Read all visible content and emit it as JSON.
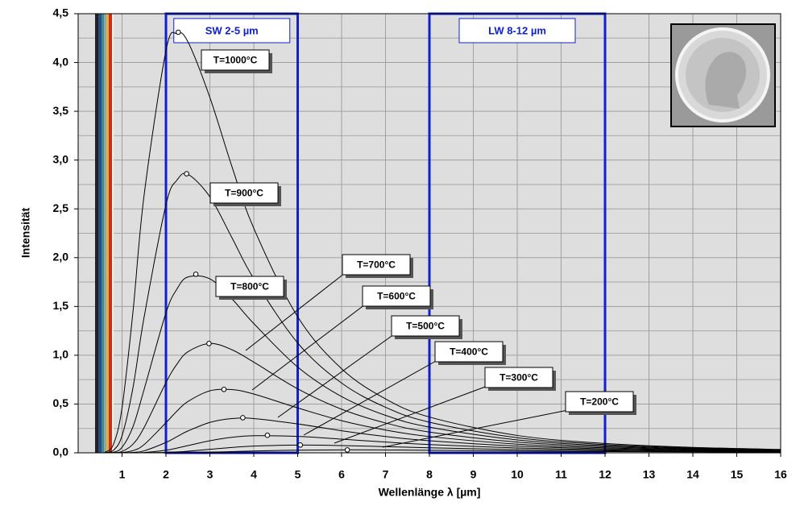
{
  "chart_data": {
    "type": "line",
    "x_label": "Wellenlänge λ [µm]",
    "y_label": "Intensität",
    "x": [
      0.6,
      0.8,
      1,
      1.25,
      1.5,
      2,
      2.25,
      2.5,
      3,
      3.5,
      4,
      5,
      6,
      7,
      8,
      10,
      12,
      14,
      16
    ],
    "xlim": [
      0,
      16
    ],
    "xticks": [
      1,
      2,
      3,
      4,
      5,
      6,
      7,
      8,
      9,
      10,
      11,
      12,
      13,
      14,
      15,
      16
    ],
    "ylim": [
      0,
      4.5
    ],
    "yticks": [
      {
        "value": 0,
        "label": "0,0"
      },
      {
        "value": 0.5,
        "label": "0,5"
      },
      {
        "value": 1,
        "label": "1,0"
      },
      {
        "value": 1.5,
        "label": "1,5"
      },
      {
        "value": 2,
        "label": "2,0"
      },
      {
        "value": 2.5,
        "label": "2,5"
      },
      {
        "value": 3,
        "label": "3,0"
      },
      {
        "value": 3.5,
        "label": "3,5"
      },
      {
        "value": 4,
        "label": "4,0"
      },
      {
        "value": 4.5,
        "label": "4,5"
      }
    ],
    "yminorticks": [
      0.25,
      0.75,
      1.25,
      1.75,
      2.25,
      2.75,
      3.25,
      3.75,
      4.25
    ],
    "grid": true,
    "bands": [
      {
        "label": "SW 2-5 µm",
        "range": [
          2,
          5
        ],
        "color": "#1020d0"
      },
      {
        "label": "LW 8-12 µm",
        "range": [
          8,
          12
        ],
        "color": "#1020d0"
      }
    ],
    "series": [
      {
        "name": "T=1000°C",
        "color": "#000000",
        "peak_x": 2.28,
        "peak_y": 4.31,
        "values": [
          0.0032,
          0.0835,
          0.462,
          1.451,
          2.632,
          4.121,
          4.298,
          4.212,
          3.642,
          2.937,
          2.301,
          1.394,
          0.862,
          0.553,
          0.367,
          0.178,
          0.0961,
          0.056,
          0.0347
        ]
      },
      {
        "name": "T=900°C",
        "color": "#000000",
        "peak_x": 2.47,
        "peak_y": 2.86,
        "values": [
          0.0006,
          0.025,
          0.176,
          0.671,
          1.384,
          2.542,
          2.794,
          2.854,
          2.624,
          2.207,
          1.784,
          1.126,
          0.715,
          0.467,
          0.314,
          0.155,
          0.0845,
          0.0496,
          0.0309
        ]
      },
      {
        "name": "T=800°C",
        "color": "#000000",
        "peak_x": 2.68,
        "peak_y": 1.83,
        "values": [
          0.0001,
          0.006,
          0.0562,
          0.269,
          0.646,
          1.434,
          1.678,
          1.802,
          1.783,
          1.579,
          1.325,
          0.879,
          0.576,
          0.384,
          0.263,
          0.1325,
          0.0731,
          0.0433,
          0.0272
        ]
      },
      {
        "name": "T=700°C",
        "color": "#000000",
        "peak_x": 2.98,
        "peak_y": 1.12,
        "values": [
          0,
          0.0011,
          0.0142,
          0.0892,
          0.2577,
          0.7195,
          0.9085,
          1.036,
          1.121,
          1.057,
          0.929,
          0.656,
          0.447,
          0.306,
          0.213,
          0.11,
          0.0619,
          0.0371,
          0.0235
        ]
      },
      {
        "name": "T=600°C",
        "color": "#000000",
        "peak_x": 3.32,
        "peak_y": 0.65,
        "values": [
          0,
          0.0001,
          0.0026,
          0.023,
          0.0833,
          0.3083,
          0.4276,
          0.5256,
          0.6355,
          0.6478,
          0.6029,
          0.4601,
          0.3295,
          0.2334,
          0.1667,
          0.0891,
          0.051,
          0.031,
          0.0198
        ]
      },
      {
        "name": "T=500°C",
        "color": "#000000",
        "peak_x": 3.75,
        "peak_y": 0.36,
        "values": [
          0,
          0,
          0.0003,
          0.0042,
          0.0201,
          0.1062,
          0.1657,
          0.2238,
          0.3116,
          0.3508,
          0.3514,
          0.2964,
          0.2263,
          0.1675,
          0.1235,
          0.0688,
          0.0404,
          0.025,
          0.0162
        ]
      },
      {
        "name": "T=400°C",
        "color": "#000000",
        "peak_x": 4.31,
        "peak_y": 0.18,
        "values": [
          0,
          0,
          0,
          0.0005,
          0.0032,
          0.0266,
          0.0485,
          0.074,
          0.1238,
          0.1587,
          0.1751,
          0.1687,
          0.1403,
          0.1101,
          0.0847,
          0.05,
          0.0304,
          0.0193,
          0.0127
        ]
      },
      {
        "name": "T=300°C",
        "color": "#000000",
        "peak_x": 5.06,
        "peak_y": 0.08,
        "values": [
          0,
          0,
          0,
          0,
          0.0003,
          0.0041,
          0.0092,
          0.0166,
          0.0357,
          0.0546,
          0.0687,
          0.0794,
          0.0743,
          0.0633,
          0.0517,
          0.033,
          0.0212,
          0.0139,
          0.0094
        ]
      },
      {
        "name": "T=200°C",
        "color": "#000000",
        "peak_x": 6.13,
        "peak_y": 0.03,
        "values": [
          0,
          0,
          0,
          0,
          0,
          0.0003,
          0.0009,
          0.002,
          0.0061,
          0.012,
          0.0182,
          0.0273,
          0.0304,
          0.0292,
          0.0261,
          0.0188,
          0.0129,
          0.0089,
          0.0063
        ]
      }
    ]
  }
}
